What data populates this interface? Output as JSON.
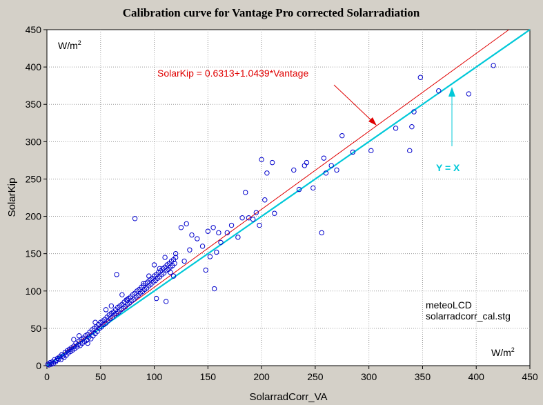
{
  "chart_data": {
    "type": "scatter",
    "title": "Calibration curve for Vantage Pro corrected Solarradiation",
    "xlabel": "SolarradCorr_VA",
    "ylabel": "SolarKip",
    "xlim": [
      0,
      450
    ],
    "ylim": [
      0,
      450
    ],
    "xticks": [
      "0",
      "50",
      "100",
      "150",
      "200",
      "250",
      "300",
      "350",
      "400",
      "450"
    ],
    "yticks": [
      "0",
      "50",
      "100",
      "150",
      "200",
      "250",
      "300",
      "350",
      "400",
      "450"
    ],
    "grid": true,
    "unit_topleft": {
      "base": "W/m",
      "sup": "2"
    },
    "unit_bottomright": {
      "base": "W/m",
      "sup": "2"
    },
    "annotations": {
      "regression_label": "SolarKip = 0.6313+1.0439*Vantage",
      "identity_label": "Y = X",
      "source_line1": "meteoLCD",
      "source_line2": "solarradcorr_cal.stg"
    },
    "lines": [
      {
        "kind": "regression",
        "intercept": 0.6313,
        "slope": 1.0439,
        "color": "#e00000"
      },
      {
        "kind": "identity",
        "intercept": 0,
        "slope": 1,
        "color": "#00c8d8"
      }
    ],
    "marker_color": "#0000cc",
    "points": [
      [
        1,
        2
      ],
      [
        2,
        1
      ],
      [
        3,
        4
      ],
      [
        4,
        2
      ],
      [
        5,
        5
      ],
      [
        6,
        3
      ],
      [
        7,
        8
      ],
      [
        8,
        5
      ],
      [
        9,
        7
      ],
      [
        10,
        10
      ],
      [
        11,
        9
      ],
      [
        12,
        12
      ],
      [
        13,
        8
      ],
      [
        14,
        15
      ],
      [
        15,
        13
      ],
      [
        16,
        11
      ],
      [
        17,
        18
      ],
      [
        18,
        14
      ],
      [
        19,
        20
      ],
      [
        20,
        17
      ],
      [
        21,
        22
      ],
      [
        22,
        19
      ],
      [
        23,
        24
      ],
      [
        24,
        21
      ],
      [
        25,
        26
      ],
      [
        26,
        23
      ],
      [
        27,
        30
      ],
      [
        28,
        25
      ],
      [
        29,
        28
      ],
      [
        30,
        33
      ],
      [
        31,
        27
      ],
      [
        32,
        35
      ],
      [
        33,
        30
      ],
      [
        34,
        37
      ],
      [
        35,
        32
      ],
      [
        36,
        40
      ],
      [
        37,
        34
      ],
      [
        38,
        42
      ],
      [
        39,
        38
      ],
      [
        40,
        45
      ],
      [
        41,
        36
      ],
      [
        42,
        48
      ],
      [
        43,
        40
      ],
      [
        44,
        50
      ],
      [
        45,
        43
      ],
      [
        46,
        52
      ],
      [
        47,
        46
      ],
      [
        48,
        55
      ],
      [
        49,
        50
      ],
      [
        50,
        58
      ],
      [
        51,
        52
      ],
      [
        52,
        60
      ],
      [
        53,
        55
      ],
      [
        54,
        62
      ],
      [
        55,
        57
      ],
      [
        56,
        65
      ],
      [
        57,
        60
      ],
      [
        58,
        68
      ],
      [
        59,
        63
      ],
      [
        60,
        70
      ],
      [
        61,
        65
      ],
      [
        62,
        72
      ],
      [
        63,
        68
      ],
      [
        64,
        75
      ],
      [
        65,
        70
      ],
      [
        66,
        78
      ],
      [
        67,
        72
      ],
      [
        68,
        80
      ],
      [
        69,
        75
      ],
      [
        70,
        82
      ],
      [
        71,
        77
      ],
      [
        72,
        85
      ],
      [
        73,
        79
      ],
      [
        74,
        88
      ],
      [
        75,
        82
      ],
      [
        76,
        90
      ],
      [
        77,
        84
      ],
      [
        78,
        92
      ],
      [
        79,
        87
      ],
      [
        80,
        95
      ],
      [
        81,
        89
      ],
      [
        82,
        97
      ],
      [
        83,
        92
      ],
      [
        84,
        100
      ],
      [
        85,
        94
      ],
      [
        86,
        102
      ],
      [
        87,
        97
      ],
      [
        88,
        105
      ],
      [
        89,
        99
      ],
      [
        90,
        107
      ],
      [
        91,
        102
      ],
      [
        92,
        110
      ],
      [
        93,
        104
      ],
      [
        94,
        112
      ],
      [
        95,
        107
      ],
      [
        96,
        115
      ],
      [
        97,
        109
      ],
      [
        98,
        117
      ],
      [
        99,
        112
      ],
      [
        100,
        120
      ],
      [
        101,
        114
      ],
      [
        102,
        122
      ],
      [
        103,
        117
      ],
      [
        104,
        125
      ],
      [
        105,
        119
      ],
      [
        106,
        127
      ],
      [
        107,
        122
      ],
      [
        108,
        130
      ],
      [
        109,
        124
      ],
      [
        110,
        132
      ],
      [
        111,
        127
      ],
      [
        112,
        135
      ],
      [
        113,
        129
      ],
      [
        114,
        137
      ],
      [
        115,
        132
      ],
      [
        116,
        140
      ],
      [
        117,
        134
      ],
      [
        118,
        142
      ],
      [
        119,
        137
      ],
      [
        120,
        145
      ],
      [
        25,
        35
      ],
      [
        30,
        40
      ],
      [
        38,
        30
      ],
      [
        45,
        58
      ],
      [
        55,
        75
      ],
      [
        60,
        80
      ],
      [
        65,
        122
      ],
      [
        70,
        95
      ],
      [
        75,
        88
      ],
      [
        82,
        197
      ],
      [
        90,
        110
      ],
      [
        95,
        120
      ],
      [
        100,
        135
      ],
      [
        105,
        130
      ],
      [
        110,
        145
      ],
      [
        115,
        125
      ],
      [
        120,
        150
      ],
      [
        125,
        185
      ],
      [
        130,
        190
      ],
      [
        135,
        175
      ],
      [
        140,
        170
      ],
      [
        145,
        160
      ],
      [
        150,
        180
      ],
      [
        155,
        185
      ],
      [
        160,
        178
      ],
      [
        148,
        128
      ],
      [
        152,
        146
      ],
      [
        158,
        152
      ],
      [
        162,
        165
      ],
      [
        168,
        178
      ],
      [
        172,
        188
      ],
      [
        178,
        172
      ],
      [
        182,
        198
      ],
      [
        185,
        232
      ],
      [
        188,
        198
      ],
      [
        192,
        196
      ],
      [
        195,
        205
      ],
      [
        198,
        188
      ],
      [
        200,
        276
      ],
      [
        203,
        222
      ],
      [
        205,
        258
      ],
      [
        210,
        272
      ],
      [
        212,
        204
      ],
      [
        230,
        262
      ],
      [
        235,
        236
      ],
      [
        240,
        268
      ],
      [
        242,
        272
      ],
      [
        248,
        238
      ],
      [
        256,
        178
      ],
      [
        258,
        278
      ],
      [
        260,
        258
      ],
      [
        265,
        268
      ],
      [
        270,
        262
      ],
      [
        275,
        308
      ],
      [
        285,
        286
      ],
      [
        302,
        288
      ],
      [
        325,
        318
      ],
      [
        338,
        288
      ],
      [
        340,
        320
      ],
      [
        342,
        340
      ],
      [
        348,
        386
      ],
      [
        365,
        368
      ],
      [
        393,
        364
      ],
      [
        416,
        402
      ],
      [
        156,
        103
      ],
      [
        111,
        86
      ],
      [
        102,
        90
      ],
      [
        118,
        120
      ],
      [
        128,
        140
      ],
      [
        133,
        155
      ]
    ]
  }
}
